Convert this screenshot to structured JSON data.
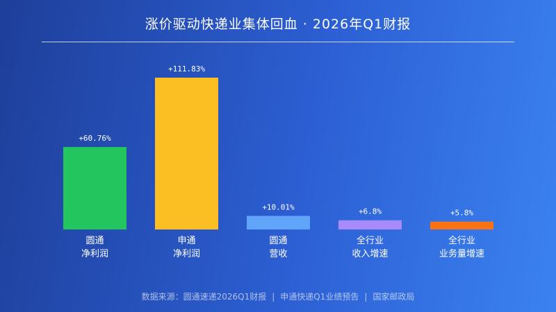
{
  "header": {
    "title": "涨价驱动快递业集体回血 · 2026年Q1财报"
  },
  "chart_data": {
    "type": "bar",
    "title": "涨价驱动快递业集体回血 · 2026年Q1财报",
    "xlabel": "",
    "ylabel": "",
    "unit": "%",
    "ylim": [
      0,
      120
    ],
    "grid": false,
    "legend": "none",
    "categories": [
      [
        "圆通",
        "净利润"
      ],
      [
        "申通",
        "净利润"
      ],
      [
        "圆通",
        "营收"
      ],
      [
        "全行业",
        "收入增速"
      ],
      [
        "全行业",
        "业务量增速"
      ]
    ],
    "values": [
      60.76,
      111.83,
      10.01,
      6.8,
      5.8
    ],
    "data_labels": [
      "+60.76%",
      "+111.83%",
      "+10.01%",
      "+6.8%",
      "+5.8%"
    ],
    "colors": [
      "#22c55e",
      "#fbbf24",
      "#60a5fa",
      "#a78bfa",
      "#f97316"
    ]
  },
  "footer": {
    "sources": [
      "数据来源：圆通速递2026Q1财报",
      "申通快递Q1业绩预告",
      "国家邮政局"
    ],
    "separator": "|"
  }
}
